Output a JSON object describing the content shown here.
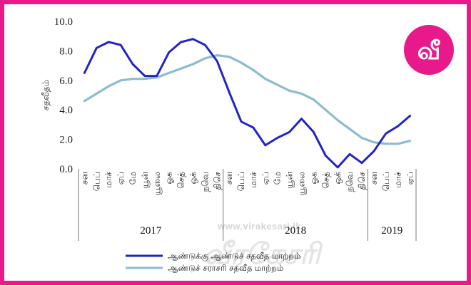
{
  "logo": {
    "glyph": "வீ",
    "color": "#e8198b"
  },
  "watermark": {
    "url": "www.virakesari.lk",
    "brand": "வீரகேசரி"
  },
  "chart_data": {
    "type": "line",
    "ylabel": "சதவீதம்",
    "ylim": [
      0,
      10
    ],
    "yticks": [
      "0.0",
      "2.0",
      "4.0",
      "6.0",
      "8.0",
      "10.0"
    ],
    "ytick_values": [
      0,
      2,
      4,
      6,
      8,
      10
    ],
    "categories": [
      "சன",
      "பெப்",
      "மாச்",
      "ஏப்",
      "மே",
      "யூன்",
      "யூலை",
      "ஓக",
      "செத்",
      "ஒக்",
      "நவெ",
      "திசெ",
      "சன",
      "பெப்",
      "மாச்",
      "ஏப்",
      "மே",
      "யூன்",
      "யூலை",
      "ஓக",
      "செத்",
      "ஒக்",
      "நவெ",
      "திசெ",
      "சன",
      "பெப்",
      "மாச்",
      "ஏப்"
    ],
    "groups": [
      {
        "label": "2017",
        "start": 0,
        "end": 11
      },
      {
        "label": "2018",
        "start": 12,
        "end": 23
      },
      {
        "label": "2019",
        "start": 24,
        "end": 27
      }
    ],
    "series": [
      {
        "name": "ஆண்டுக்கு ஆண்டுச் சதவீத மாற்றம்",
        "color": "#2323c8",
        "values": [
          6.5,
          8.2,
          8.6,
          8.4,
          7.1,
          6.3,
          6.3,
          7.9,
          8.6,
          8.8,
          8.4,
          7.3,
          5.2,
          3.2,
          2.8,
          1.6,
          2.1,
          2.5,
          3.4,
          2.5,
          0.9,
          0.1,
          1.0,
          0.4,
          1.2,
          2.4,
          2.9,
          3.6
        ]
      },
      {
        "name": "ஆண்டுச் சராசரி சதவீத மாற்றம்",
        "color": "#8cbcd2",
        "values": [
          4.6,
          5.1,
          5.6,
          6.0,
          6.1,
          6.1,
          6.2,
          6.5,
          6.8,
          7.1,
          7.5,
          7.7,
          7.6,
          7.2,
          6.7,
          6.1,
          5.7,
          5.3,
          5.1,
          4.7,
          4.0,
          3.3,
          2.7,
          2.1,
          1.8,
          1.7,
          1.7,
          1.9
        ]
      }
    ]
  }
}
